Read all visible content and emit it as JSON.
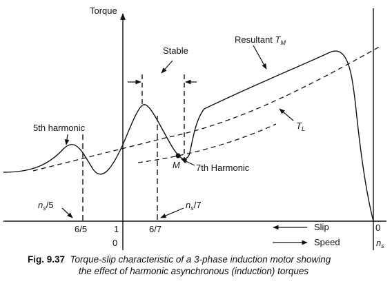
{
  "diagram": {
    "y_axis_label": "Torque",
    "labels": {
      "stable": "Stable",
      "resultant": "Resultant",
      "fifth_harmonic": "5th harmonic",
      "seventh_harmonic": "7th Harmonic",
      "point_m": "M",
      "slip": "Slip",
      "speed": "Speed"
    },
    "math_labels": {
      "tm": {
        "base": "T",
        "sub": "M"
      },
      "tl": {
        "base": "T",
        "sub": "L"
      },
      "ns5": {
        "base": "n",
        "sub": "s",
        "tail": "/5"
      },
      "ns7": {
        "base": "n",
        "sub": "s",
        "tail": "/7"
      },
      "ns_end": {
        "base": "n",
        "sub": "s"
      }
    },
    "ticks": {
      "t_6_5": "6/5",
      "t_1": "1",
      "t_0_left": "0",
      "t_6_7": "6/7",
      "t_0_right": "0"
    }
  },
  "caption": {
    "number": "Fig. 9.37",
    "line1": "Torque-slip characteristic of a 3-phase induction motor showing",
    "line2": "the effect of harmonic asynchronous (induction) torques"
  }
}
